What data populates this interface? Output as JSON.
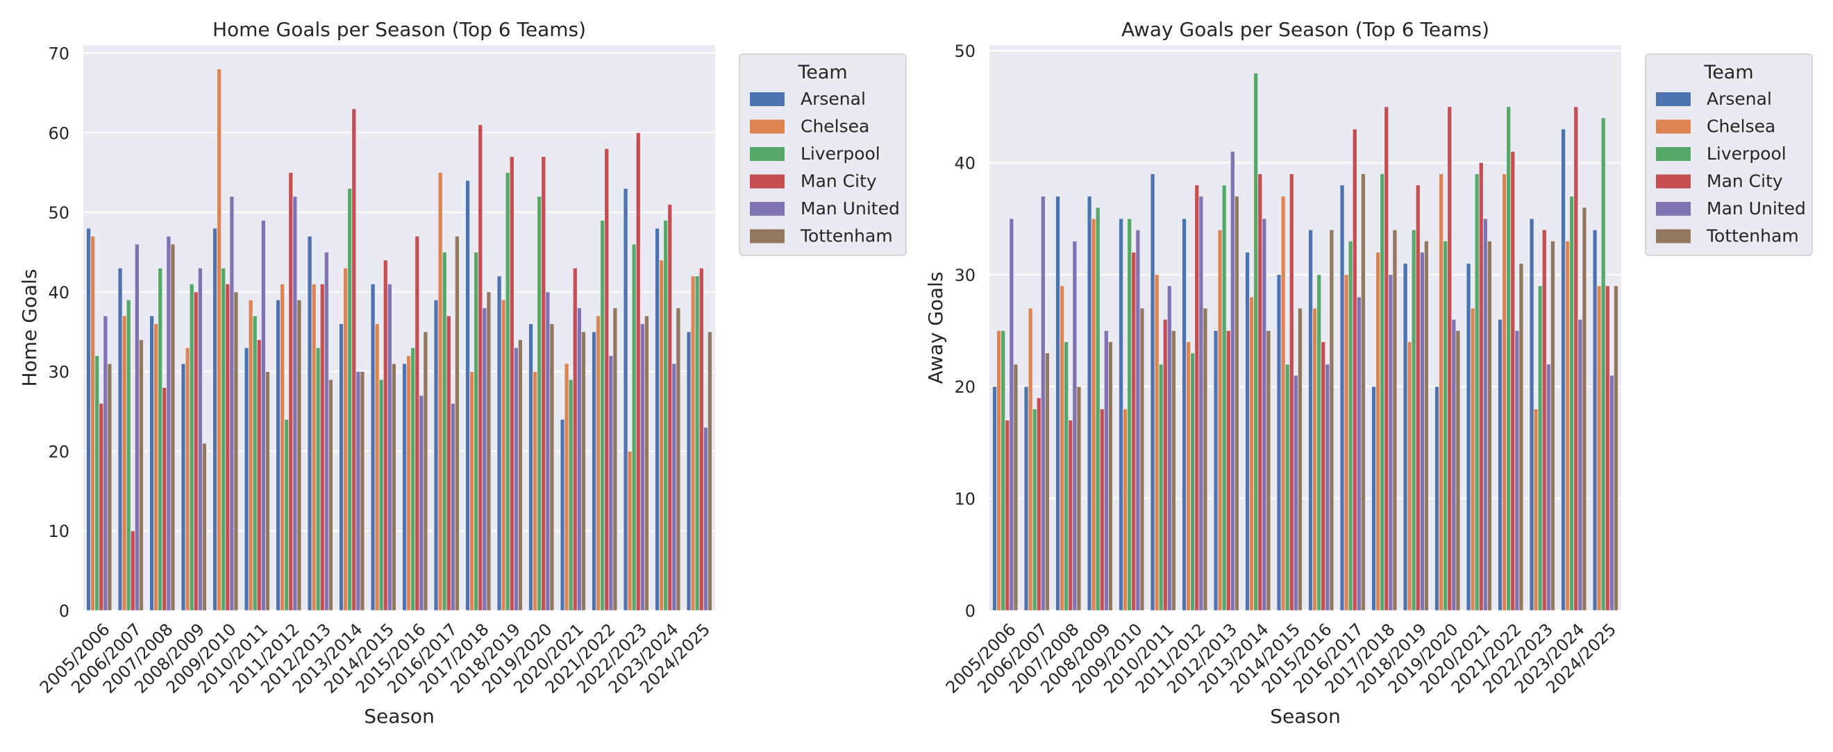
{
  "colors": {
    "Arsenal": "#4c72b0",
    "Chelsea": "#dd8452",
    "Liverpool": "#55a868",
    "Man City": "#c44e52",
    "Man United": "#8172b3",
    "Tottenham": "#937860"
  },
  "chart_data": [
    {
      "type": "bar",
      "title": "Home Goals per Season (Top 6 Teams)",
      "xlabel": "Season",
      "ylabel": "Home Goals",
      "ylim": [
        0,
        71
      ],
      "yticks": [
        0,
        10,
        20,
        30,
        40,
        50,
        60,
        70
      ],
      "grid": true,
      "legend_title": "Team",
      "legend_position": "outside-upper-right",
      "categories": [
        "2005/2006",
        "2006/2007",
        "2007/2008",
        "2008/2009",
        "2009/2010",
        "2010/2011",
        "2011/2012",
        "2012/2013",
        "2013/2014",
        "2014/2015",
        "2015/2016",
        "2016/2017",
        "2017/2018",
        "2018/2019",
        "2019/2020",
        "2020/2021",
        "2021/2022",
        "2022/2023",
        "2023/2024",
        "2024/2025"
      ],
      "series": [
        {
          "name": "Arsenal",
          "values": [
            48,
            43,
            37,
            31,
            48,
            33,
            39,
            47,
            36,
            41,
            31,
            39,
            54,
            42,
            36,
            24,
            35,
            53,
            48,
            35
          ]
        },
        {
          "name": "Chelsea",
          "values": [
            47,
            37,
            36,
            33,
            68,
            39,
            41,
            41,
            43,
            36,
            32,
            55,
            30,
            39,
            30,
            31,
            37,
            20,
            44,
            42
          ]
        },
        {
          "name": "Liverpool",
          "values": [
            32,
            39,
            43,
            41,
            43,
            37,
            24,
            33,
            53,
            29,
            33,
            45,
            45,
            55,
            52,
            29,
            49,
            46,
            49,
            42
          ]
        },
        {
          "name": "Man City",
          "values": [
            26,
            10,
            28,
            40,
            41,
            34,
            55,
            41,
            63,
            44,
            47,
            37,
            61,
            57,
            57,
            43,
            58,
            60,
            51,
            43
          ]
        },
        {
          "name": "Man United",
          "values": [
            37,
            46,
            47,
            43,
            52,
            49,
            52,
            45,
            30,
            41,
            27,
            26,
            38,
            33,
            40,
            38,
            32,
            36,
            31,
            23
          ]
        },
        {
          "name": "Tottenham",
          "values": [
            31,
            34,
            46,
            21,
            40,
            30,
            39,
            29,
            30,
            31,
            35,
            47,
            40,
            34,
            36,
            35,
            38,
            37,
            38,
            35
          ]
        }
      ]
    },
    {
      "type": "bar",
      "title": "Away Goals per Season (Top 6 Teams)",
      "xlabel": "Season",
      "ylabel": "Away Goals",
      "ylim": [
        0,
        50.5
      ],
      "yticks": [
        0,
        10,
        20,
        30,
        40,
        50
      ],
      "grid": true,
      "legend_title": "Team",
      "legend_position": "outside-upper-right",
      "categories": [
        "2005/2006",
        "2006/2007",
        "2007/2008",
        "2008/2009",
        "2009/2010",
        "2010/2011",
        "2011/2012",
        "2012/2013",
        "2013/2014",
        "2014/2015",
        "2015/2016",
        "2016/2017",
        "2017/2018",
        "2018/2019",
        "2019/2020",
        "2020/2021",
        "2021/2022",
        "2022/2023",
        "2023/2024",
        "2024/2025"
      ],
      "series": [
        {
          "name": "Arsenal",
          "values": [
            20,
            20,
            37,
            37,
            35,
            39,
            35,
            25,
            32,
            30,
            34,
            38,
            20,
            31,
            20,
            31,
            26,
            35,
            43,
            34
          ]
        },
        {
          "name": "Chelsea",
          "values": [
            25,
            27,
            29,
            35,
            18,
            30,
            24,
            34,
            28,
            37,
            27,
            30,
            32,
            24,
            39,
            27,
            39,
            18,
            33,
            29
          ]
        },
        {
          "name": "Liverpool",
          "values": [
            25,
            18,
            24,
            36,
            35,
            22,
            23,
            38,
            48,
            22,
            30,
            33,
            39,
            34,
            33,
            39,
            45,
            29,
            37,
            44
          ]
        },
        {
          "name": "Man City",
          "values": [
            17,
            19,
            17,
            18,
            32,
            26,
            38,
            25,
            39,
            39,
            24,
            43,
            45,
            38,
            45,
            40,
            41,
            34,
            45,
            29
          ]
        },
        {
          "name": "Man United",
          "values": [
            35,
            37,
            33,
            25,
            34,
            29,
            37,
            41,
            35,
            21,
            22,
            28,
            30,
            32,
            26,
            35,
            25,
            22,
            26,
            21
          ]
        },
        {
          "name": "Tottenham",
          "values": [
            22,
            23,
            20,
            24,
            27,
            25,
            27,
            37,
            25,
            27,
            34,
            39,
            34,
            33,
            25,
            33,
            31,
            33,
            36,
            29
          ]
        }
      ]
    }
  ]
}
